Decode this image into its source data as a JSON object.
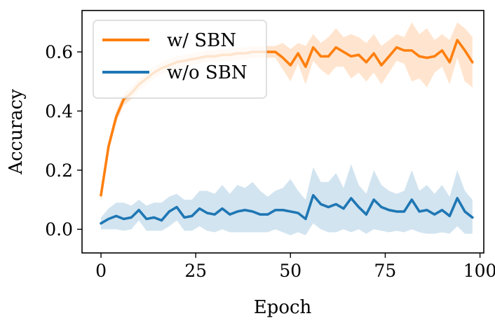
{
  "chart_data": {
    "type": "line",
    "title": "",
    "xlabel": "Epoch",
    "ylabel": "Accuracy",
    "xlim": [
      -5,
      101
    ],
    "ylim": [
      -0.08,
      0.74
    ],
    "xticks": [
      0,
      25,
      50,
      75,
      100
    ],
    "xtick_labels": [
      "0",
      "25",
      "50",
      "75",
      "100"
    ],
    "yticks": [
      0.0,
      0.2,
      0.4,
      0.6
    ],
    "ytick_labels": [
      "0.0",
      "0.2",
      "0.4",
      "0.6"
    ],
    "grid": false,
    "legend_position": "top-left",
    "x": [
      0,
      2,
      4,
      6,
      8,
      10,
      12,
      14,
      16,
      18,
      20,
      22,
      24,
      26,
      28,
      30,
      32,
      34,
      36,
      38,
      40,
      42,
      44,
      46,
      48,
      50,
      52,
      54,
      56,
      58,
      60,
      62,
      64,
      66,
      68,
      70,
      72,
      74,
      76,
      78,
      80,
      82,
      84,
      86,
      88,
      90,
      92,
      94,
      96,
      98
    ],
    "series": [
      {
        "name": "w/ SBN",
        "color": "#ff7f0e",
        "values": [
          0.115,
          0.28,
          0.38,
          0.44,
          0.46,
          0.49,
          0.51,
          0.53,
          0.545,
          0.555,
          0.565,
          0.57,
          0.575,
          0.58,
          0.585,
          0.585,
          0.59,
          0.59,
          0.595,
          0.595,
          0.6,
          0.6,
          0.6,
          0.6,
          0.58,
          0.555,
          0.595,
          0.55,
          0.615,
          0.585,
          0.585,
          0.615,
          0.6,
          0.585,
          0.59,
          0.565,
          0.595,
          0.555,
          0.585,
          0.615,
          0.605,
          0.605,
          0.585,
          0.58,
          0.585,
          0.605,
          0.565,
          0.64,
          0.605,
          0.565
        ],
        "upper": [
          0.135,
          0.3,
          0.4,
          0.46,
          0.48,
          0.51,
          0.53,
          0.55,
          0.565,
          0.575,
          0.585,
          0.59,
          0.595,
          0.6,
          0.605,
          0.605,
          0.61,
          0.61,
          0.615,
          0.615,
          0.62,
          0.62,
          0.62,
          0.62,
          0.63,
          0.61,
          0.63,
          0.62,
          0.66,
          0.63,
          0.65,
          0.68,
          0.65,
          0.66,
          0.65,
          0.63,
          0.66,
          0.62,
          0.64,
          0.66,
          0.65,
          0.7,
          0.66,
          0.68,
          0.64,
          0.66,
          0.64,
          0.7,
          0.68,
          0.65
        ],
        "lower": [
          0.095,
          0.26,
          0.36,
          0.42,
          0.44,
          0.47,
          0.49,
          0.51,
          0.525,
          0.535,
          0.545,
          0.55,
          0.555,
          0.56,
          0.565,
          0.565,
          0.57,
          0.57,
          0.575,
          0.575,
          0.58,
          0.58,
          0.58,
          0.58,
          0.54,
          0.5,
          0.56,
          0.49,
          0.57,
          0.54,
          0.52,
          0.55,
          0.55,
          0.51,
          0.53,
          0.5,
          0.53,
          0.49,
          0.53,
          0.57,
          0.56,
          0.5,
          0.51,
          0.48,
          0.53,
          0.55,
          0.49,
          0.58,
          0.5,
          0.48
        ]
      },
      {
        "name": "w/o SBN",
        "color": "#1f77b4",
        "values": [
          0.02,
          0.035,
          0.045,
          0.035,
          0.04,
          0.065,
          0.035,
          0.04,
          0.03,
          0.06,
          0.075,
          0.04,
          0.045,
          0.07,
          0.055,
          0.05,
          0.07,
          0.05,
          0.06,
          0.065,
          0.06,
          0.05,
          0.05,
          0.065,
          0.065,
          0.06,
          0.055,
          0.035,
          0.115,
          0.085,
          0.075,
          0.085,
          0.07,
          0.105,
          0.075,
          0.05,
          0.1,
          0.075,
          0.065,
          0.06,
          0.06,
          0.1,
          0.06,
          0.065,
          0.05,
          0.065,
          0.045,
          0.105,
          0.06,
          0.04
        ],
        "upper": [
          0.04,
          0.07,
          0.09,
          0.09,
          0.08,
          0.1,
          0.08,
          0.09,
          0.09,
          0.11,
          0.12,
          0.1,
          0.1,
          0.13,
          0.13,
          0.12,
          0.15,
          0.12,
          0.15,
          0.14,
          0.16,
          0.13,
          0.11,
          0.13,
          0.14,
          0.17,
          0.13,
          0.1,
          0.21,
          0.16,
          0.16,
          0.19,
          0.14,
          0.22,
          0.15,
          0.12,
          0.2,
          0.15,
          0.13,
          0.12,
          0.13,
          0.2,
          0.13,
          0.15,
          0.12,
          0.15,
          0.11,
          0.2,
          0.13,
          0.1
        ],
        "lower": [
          0.0,
          0.0,
          0.0,
          -0.005,
          0.0,
          0.03,
          -0.005,
          -0.005,
          -0.005,
          0.01,
          0.03,
          -0.005,
          -0.005,
          0.01,
          -0.005,
          -0.01,
          0.0,
          -0.01,
          -0.01,
          -0.01,
          -0.01,
          -0.01,
          -0.01,
          0.0,
          -0.01,
          -0.02,
          -0.01,
          -0.02,
          0.02,
          0.0,
          -0.01,
          -0.01,
          0.0,
          -0.01,
          0.0,
          -0.015,
          0.0,
          -0.005,
          -0.01,
          -0.005,
          -0.01,
          0.0,
          -0.01,
          -0.015,
          -0.015,
          -0.01,
          -0.015,
          0.01,
          -0.015,
          -0.015
        ]
      }
    ]
  }
}
